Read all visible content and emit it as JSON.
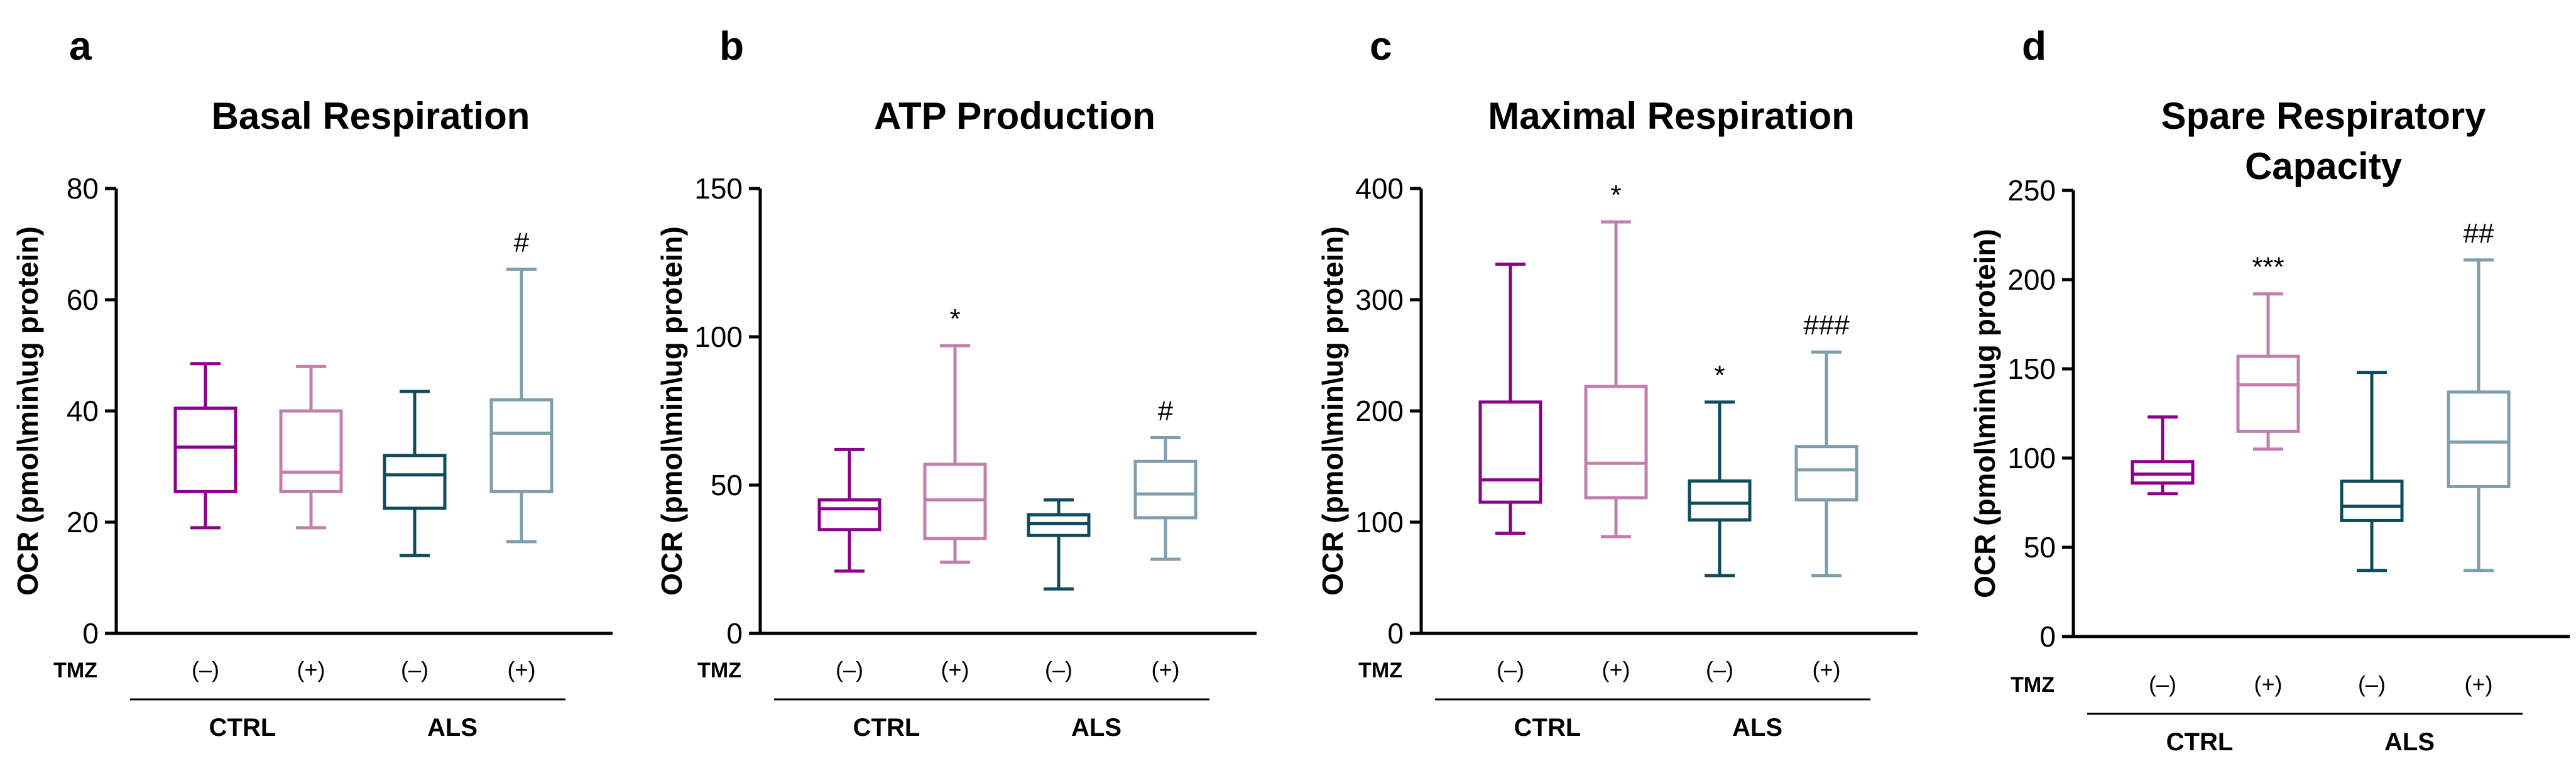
{
  "figure": {
    "colors": {
      "ctrl_minus": "#8B008B",
      "ctrl_plus": "#C17FAD",
      "als_minus": "#0F4B5C",
      "als_plus": "#7F9EAD",
      "axis": "#000000"
    },
    "treatment_label": "TMZ",
    "category_labels": [
      "(–)",
      "(+)",
      "(–)",
      "(+)"
    ],
    "group_labels": [
      "CTRL",
      "ALS"
    ]
  },
  "chart_data": [
    {
      "panel": "a",
      "type": "boxplot",
      "title": "Basal Respiration",
      "ylabel": "OCR (pmol\\min\\ug protein)",
      "ylim": [
        0,
        80
      ],
      "yticks": [
        0,
        20,
        40,
        60,
        80
      ],
      "series": [
        {
          "name": "CTRL TMZ(–)",
          "whisker_low": 19,
          "q1": 25.5,
          "median": 33.5,
          "q3": 40.5,
          "whisker_high": 48.5,
          "annotation": ""
        },
        {
          "name": "CTRL TMZ(+)",
          "whisker_low": 19,
          "q1": 25.5,
          "median": 29,
          "q3": 40,
          "whisker_high": 48,
          "annotation": ""
        },
        {
          "name": "ALS TMZ(–)",
          "whisker_low": 14,
          "q1": 22.5,
          "median": 28.5,
          "q3": 32,
          "whisker_high": 43.5,
          "annotation": ""
        },
        {
          "name": "ALS TMZ(+)",
          "whisker_low": 16.5,
          "q1": 25.5,
          "median": 36,
          "q3": 42,
          "whisker_high": 65.5,
          "annotation": "#"
        }
      ]
    },
    {
      "panel": "b",
      "type": "boxplot",
      "title": "ATP Production",
      "ylabel": "OCR (pmol\\min\\ug protein)",
      "ylim": [
        0,
        150
      ],
      "yticks": [
        0,
        50,
        100,
        150
      ],
      "series": [
        {
          "name": "CTRL TMZ(–)",
          "whisker_low": 21,
          "q1": 35,
          "median": 42,
          "q3": 45,
          "whisker_high": 62,
          "annotation": ""
        },
        {
          "name": "CTRL TMZ(+)",
          "whisker_low": 24,
          "q1": 32,
          "median": 45,
          "q3": 57,
          "whisker_high": 97,
          "annotation": "*"
        },
        {
          "name": "ALS TMZ(–)",
          "whisker_low": 15,
          "q1": 33,
          "median": 37,
          "q3": 40,
          "whisker_high": 45,
          "annotation": ""
        },
        {
          "name": "ALS TMZ(+)",
          "whisker_low": 25,
          "q1": 39,
          "median": 47,
          "q3": 58,
          "whisker_high": 66,
          "annotation": "#"
        }
      ]
    },
    {
      "panel": "c",
      "type": "boxplot",
      "title": "Maximal Respiration",
      "ylabel": "OCR (pmol\\min\\ug protein)",
      "ylim": [
        0,
        400
      ],
      "yticks": [
        0,
        100,
        200,
        300,
        400
      ],
      "series": [
        {
          "name": "CTRL TMZ(–)",
          "whisker_low": 90,
          "q1": 118,
          "median": 138,
          "q3": 208,
          "whisker_high": 332,
          "annotation": ""
        },
        {
          "name": "CTRL TMZ(+)",
          "whisker_low": 87,
          "q1": 122,
          "median": 153,
          "q3": 222,
          "whisker_high": 370,
          "annotation": "*"
        },
        {
          "name": "ALS TMZ(–)",
          "whisker_low": 52,
          "q1": 102,
          "median": 117,
          "q3": 137,
          "whisker_high": 208,
          "annotation": "*"
        },
        {
          "name": "ALS TMZ(+)",
          "whisker_low": 52,
          "q1": 120,
          "median": 147,
          "q3": 168,
          "whisker_high": 253,
          "annotation": "###"
        }
      ]
    },
    {
      "panel": "d",
      "type": "boxplot",
      "title": "Spare Respiratory Capacity",
      "title_lines": [
        "Spare Respiratory",
        "Capacity"
      ],
      "ylabel": "OCR (pmol\\min\\ug protein)",
      "ylim": [
        0,
        250
      ],
      "yticks": [
        0,
        50,
        100,
        150,
        200,
        250
      ],
      "series": [
        {
          "name": "CTRL TMZ(–)",
          "whisker_low": 80,
          "q1": 86,
          "median": 91,
          "q3": 98,
          "whisker_high": 123,
          "annotation": ""
        },
        {
          "name": "CTRL TMZ(+)",
          "whisker_low": 105,
          "q1": 115,
          "median": 141,
          "q3": 157,
          "whisker_high": 192,
          "annotation": "***"
        },
        {
          "name": "ALS TMZ(–)",
          "whisker_low": 37,
          "q1": 65,
          "median": 73,
          "q3": 87,
          "whisker_high": 148,
          "annotation": ""
        },
        {
          "name": "ALS TMZ(+)",
          "whisker_low": 37,
          "q1": 84,
          "median": 109,
          "q3": 137,
          "whisker_high": 211,
          "annotation": "##"
        }
      ]
    }
  ]
}
